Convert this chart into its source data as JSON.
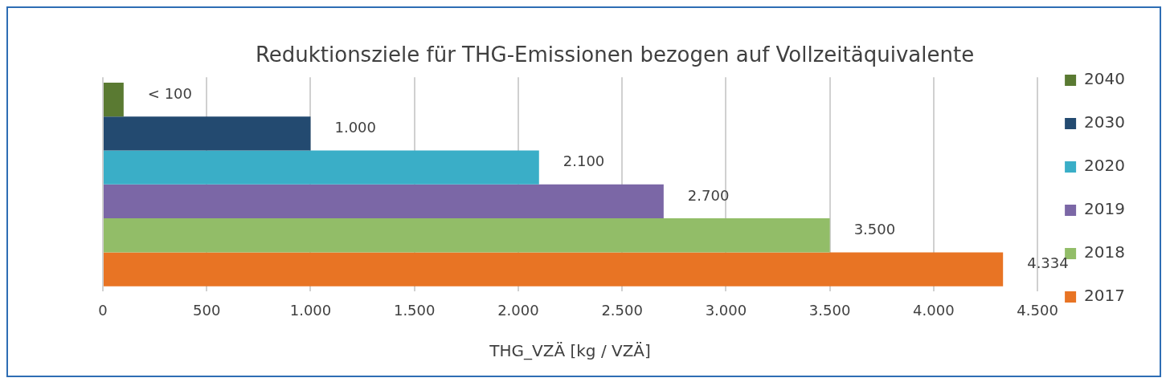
{
  "chart_data": {
    "type": "bar",
    "orientation": "horizontal",
    "title": "Reduktionsziele für THG-Emissionen bezogen auf Vollzeitäquivalente",
    "xlabel": "THG_VZÄ [kg / VZÄ]",
    "categories": [
      null
    ],
    "series": [
      {
        "name": "2040",
        "color": "#5a7a32",
        "values": [
          100
        ],
        "value_labels": [
          "< 100"
        ]
      },
      {
        "name": "2030",
        "color": "#234a70",
        "values": [
          1000
        ],
        "value_labels": [
          "1.000"
        ]
      },
      {
        "name": "2020",
        "color": "#3aaec7",
        "values": [
          2100
        ],
        "value_labels": [
          "2.100"
        ]
      },
      {
        "name": "2019",
        "color": "#7b67a6",
        "values": [
          2700
        ],
        "value_labels": [
          "2.700"
        ]
      },
      {
        "name": "2018",
        "color": "#92bd68",
        "values": [
          3500
        ],
        "value_labels": [
          "3.500"
        ]
      },
      {
        "name": "2017",
        "color": "#e87424",
        "values": [
          4334
        ],
        "value_labels": [
          "4.334"
        ]
      }
    ],
    "xlim": [
      0,
      4500
    ],
    "xticks": [
      0,
      500,
      {
        "value": 1000,
        "label": "1.000"
      },
      {
        "value": 1500,
        "label": "1.500"
      },
      {
        "value": 2000,
        "label": "2.000"
      },
      {
        "value": 2500,
        "label": "2.500"
      },
      {
        "value": 3000,
        "label": "3.000"
      },
      {
        "value": 3500,
        "label": "3.500"
      },
      {
        "value": 4000,
        "label": "4.000"
      },
      {
        "value": 4500,
        "label": "4.500"
      }
    ],
    "grid": "x",
    "legend": "right"
  }
}
